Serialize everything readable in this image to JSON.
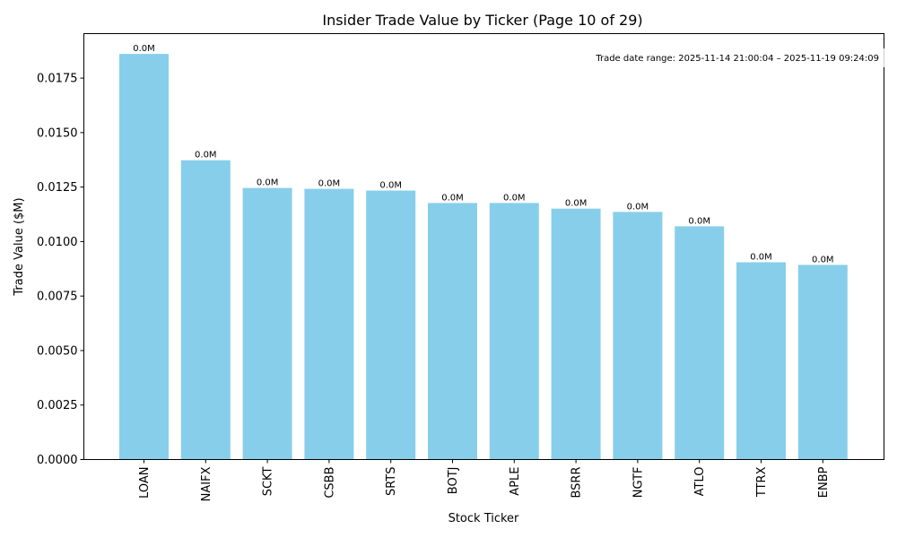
{
  "chart_data": {
    "type": "bar",
    "title": "Insider Trade Value by Ticker (Page 10 of 29)",
    "xlabel": "Stock Ticker",
    "ylabel": "Trade Value ($M)",
    "categories": [
      "LOAN",
      "NAIFX",
      "SCKT",
      "CSBB",
      "SRTS",
      "BOTJ",
      "APLE",
      "BSRR",
      "NGTF",
      "ATLO",
      "TTRX",
      "ENBP"
    ],
    "values": [
      0.01861,
      0.01373,
      0.01246,
      0.01242,
      0.01234,
      0.01177,
      0.01177,
      0.01151,
      0.01136,
      0.0107,
      0.00905,
      0.00893
    ],
    "data_labels": [
      "0.0M",
      "0.0M",
      "0.0M",
      "0.0M",
      "0.0M",
      "0.0M",
      "0.0M",
      "0.0M",
      "0.0M",
      "0.0M",
      "0.0M",
      "0.0M"
    ],
    "ylim": [
      0,
      0.01954
    ],
    "yticks": [
      0.0,
      0.0025,
      0.005,
      0.0075,
      0.01,
      0.0125,
      0.015,
      0.0175
    ],
    "ytick_labels": [
      "0.0000",
      "0.0025",
      "0.0050",
      "0.0075",
      "0.0100",
      "0.0125",
      "0.0150",
      "0.0175"
    ],
    "annotation": "Trade date range: 2025-11-14 21:00:04 – 2025-11-19 09:24:09",
    "bar_color": "#87ceeb",
    "grid": false
  }
}
